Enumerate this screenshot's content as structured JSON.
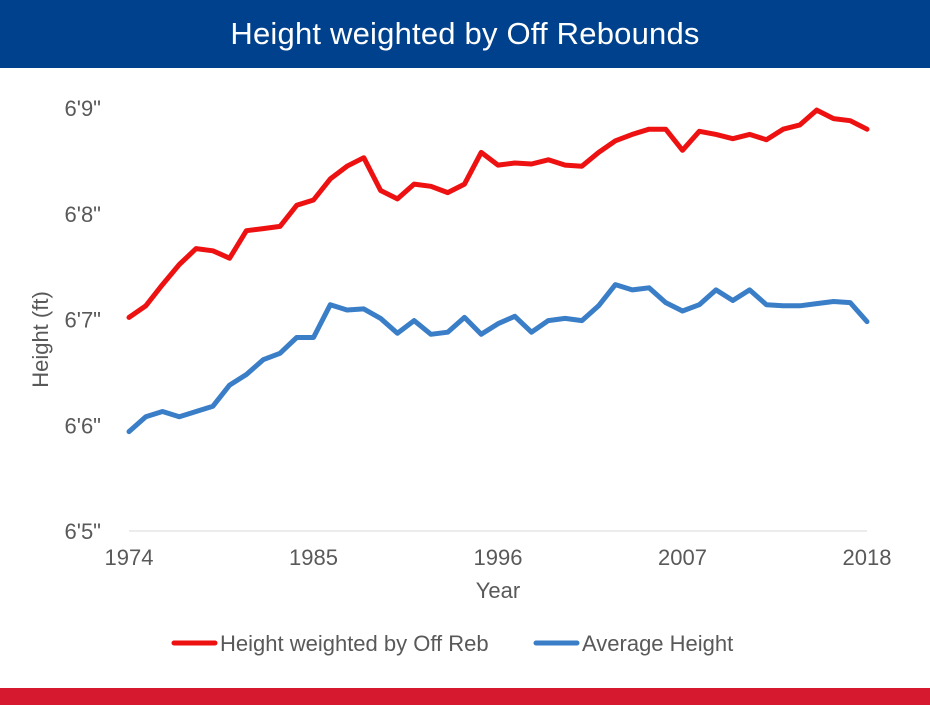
{
  "header": {
    "title": "Height weighted by Off Rebounds"
  },
  "colors": {
    "header_bg": "#00418d",
    "footer_bar": "#d6192e",
    "series_red": "#ee1111",
    "series_blue": "#3a7ec8",
    "axis_text": "#595959",
    "axis_line": "#d9d9d9"
  },
  "chart_data": {
    "type": "line",
    "title": "Height weighted by Off Rebounds",
    "xlabel": "Year",
    "ylabel": "Height (ft)",
    "xlim": [
      1974,
      2018
    ],
    "ylim": [
      65,
      69
    ],
    "x_ticks": [
      1974,
      1985,
      1996,
      2007,
      2018
    ],
    "y_ticks": [
      {
        "value": 65,
        "label": "6'5\""
      },
      {
        "value": 66,
        "label": "6'6\""
      },
      {
        "value": 67,
        "label": "6'7\""
      },
      {
        "value": 68,
        "label": "6'8\""
      },
      {
        "value": 69,
        "label": "6'9\""
      }
    ],
    "grid": false,
    "legend_position": "bottom",
    "x": [
      1974,
      1975,
      1976,
      1977,
      1978,
      1979,
      1980,
      1981,
      1982,
      1983,
      1984,
      1985,
      1986,
      1987,
      1988,
      1989,
      1990,
      1991,
      1992,
      1993,
      1994,
      1995,
      1996,
      1997,
      1998,
      1999,
      2000,
      2001,
      2002,
      2003,
      2004,
      2005,
      2006,
      2007,
      2008,
      2009,
      2010,
      2011,
      2012,
      2013,
      2014,
      2015,
      2016,
      2017,
      2018
    ],
    "series": [
      {
        "name": "Height weighted by Off Reb",
        "color": "#ee1111",
        "values": [
          67.02,
          67.13,
          67.33,
          67.52,
          67.67,
          67.65,
          67.58,
          67.84,
          67.86,
          67.88,
          68.08,
          68.13,
          68.33,
          68.45,
          68.53,
          68.22,
          68.14,
          68.28,
          68.26,
          68.2,
          68.28,
          68.58,
          68.46,
          68.48,
          68.47,
          68.51,
          68.46,
          68.45,
          68.58,
          68.69,
          68.75,
          68.8,
          68.8,
          68.6,
          68.78,
          68.75,
          68.71,
          68.75,
          68.7,
          68.8,
          68.84,
          68.98,
          68.9,
          68.88,
          68.8
        ]
      },
      {
        "name": "Average Height",
        "color": "#3a7ec8",
        "values": [
          65.94,
          66.08,
          66.13,
          66.08,
          66.13,
          66.18,
          66.38,
          66.48,
          66.62,
          66.68,
          66.83,
          66.83,
          67.14,
          67.09,
          67.1,
          67.01,
          66.87,
          66.99,
          66.86,
          66.88,
          67.02,
          66.86,
          66.96,
          67.03,
          66.88,
          66.99,
          67.01,
          66.99,
          67.13,
          67.33,
          67.28,
          67.3,
          67.16,
          67.08,
          67.14,
          67.28,
          67.18,
          67.28,
          67.14,
          67.13,
          67.13,
          67.15,
          67.17,
          67.16,
          66.98
        ]
      }
    ]
  }
}
